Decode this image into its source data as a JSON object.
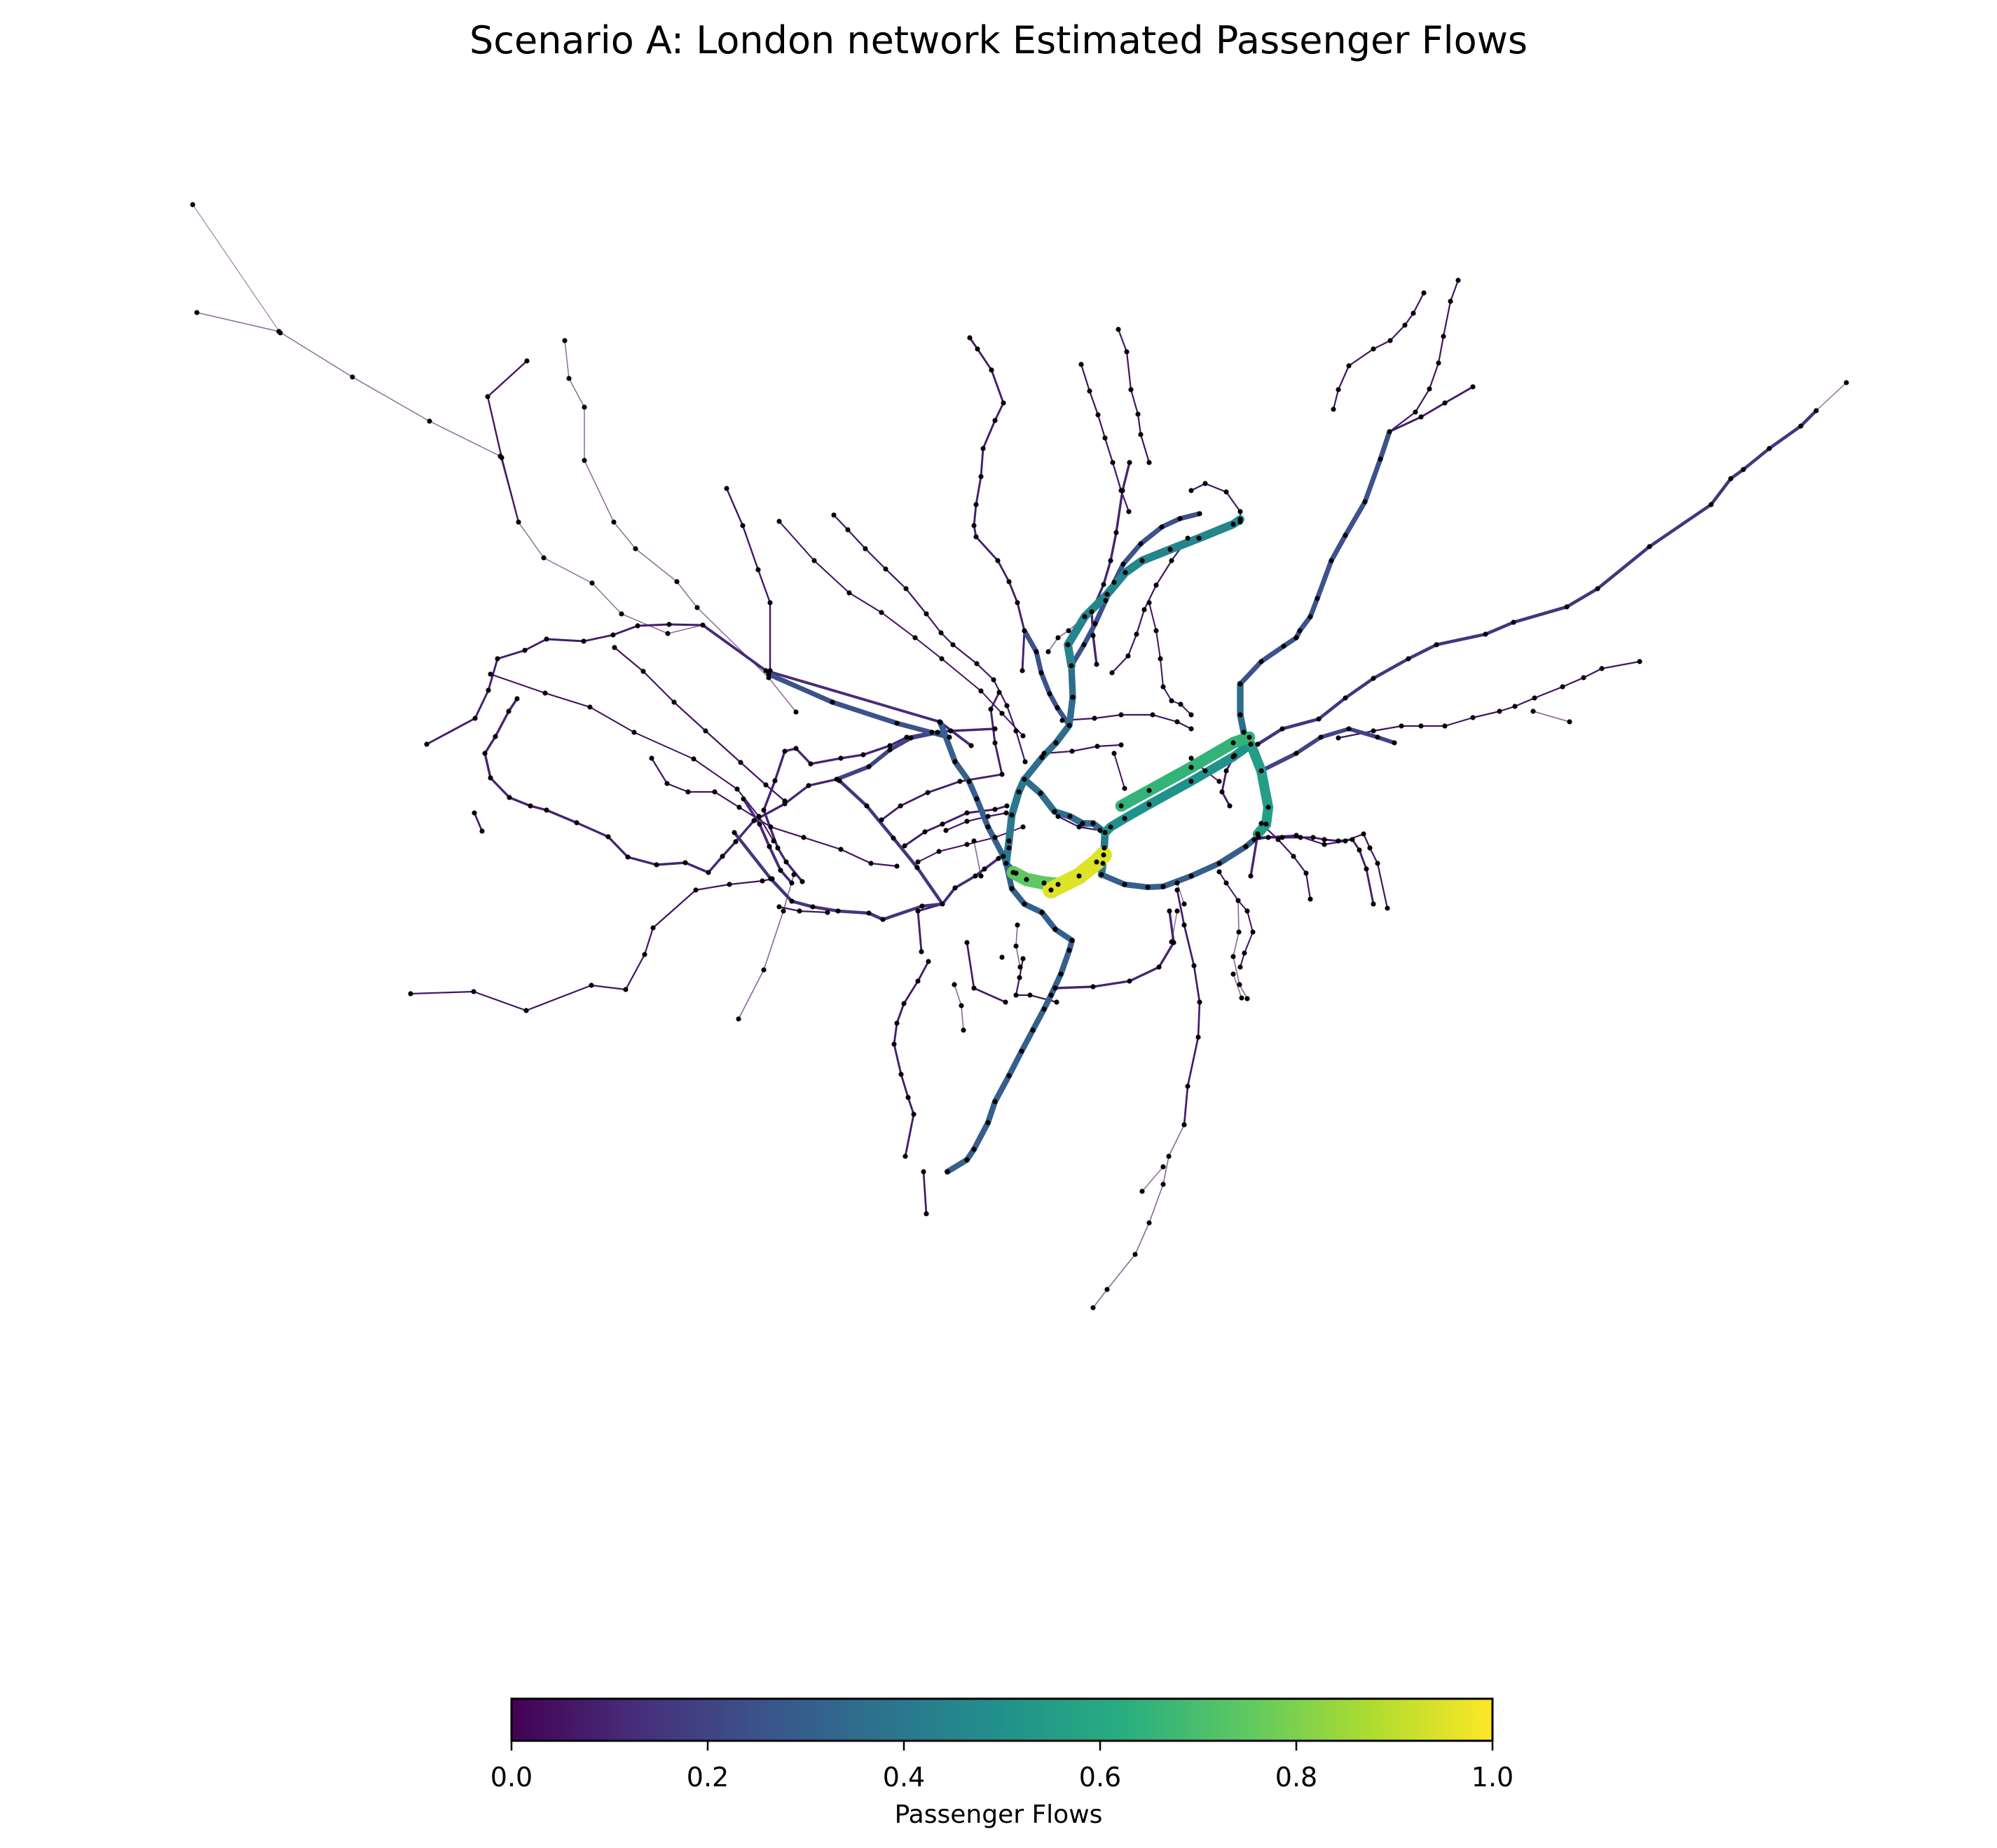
{
  "title": "Scenario A: London network Estimated Passenger Flows",
  "colorbar": {
    "label": "Passenger Flows",
    "ticks": [
      "0.0",
      "0.2",
      "0.4",
      "0.6",
      "0.8",
      "1.0"
    ],
    "colormap": [
      "#440154",
      "#472d7b",
      "#3b528b",
      "#2c728e",
      "#21918c",
      "#28ae80",
      "#5ec962",
      "#addc30",
      "#fde725"
    ]
  },
  "colors": {
    "node": "#000000",
    "background": "#ffffff"
  }
}
